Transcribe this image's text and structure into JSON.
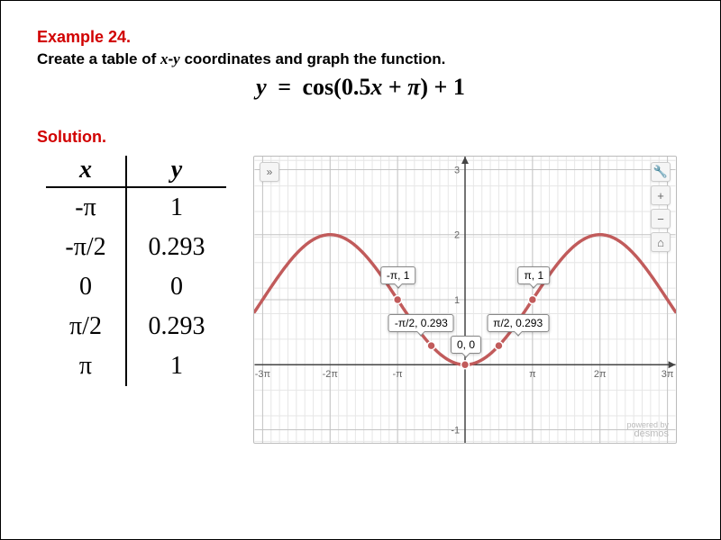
{
  "example": {
    "title": "Example 24."
  },
  "instruction": "Create a table of x-y coordinates and graph the function.",
  "equation": {
    "lhs": "y",
    "eq": "=",
    "rhs": "cos(0.5x + π) + 1"
  },
  "solution": {
    "title": "Solution."
  },
  "table": {
    "headers": {
      "x": "x",
      "y": "y"
    },
    "rows": [
      {
        "x": "-π",
        "y": "1"
      },
      {
        "x": "-π/2",
        "y": "0.293"
      },
      {
        "x": "0",
        "y": "0"
      },
      {
        "x": "π/2",
        "y": "0.293"
      },
      {
        "x": "π",
        "y": "1"
      }
    ]
  },
  "graph": {
    "type": "line",
    "xlim": [
      -9.8,
      9.8
    ],
    "ylim": [
      -1.2,
      3.2
    ],
    "xtick_step_pi": 1,
    "ytick_step": 1,
    "xtick_labels": [
      "-3π",
      "-2π",
      "-π",
      "π",
      "2π",
      "3π"
    ],
    "xtick_vals": [
      -9.4248,
      -6.2832,
      -3.1416,
      3.1416,
      6.2832,
      9.4248
    ],
    "ytick_labels": [
      "-1",
      "1",
      "2",
      "3"
    ],
    "ytick_vals": [
      -1,
      1,
      2,
      3
    ],
    "grid_minor_step": 0.3927,
    "background_color": "#ffffff",
    "grid_minor_color": "#e6e6e6",
    "grid_major_color": "#c4c4c4",
    "axis_color": "#444444",
    "axis_label_color": "#666666",
    "axis_label_fontsize": 11,
    "curve_color": "#c15b5b",
    "curve_stroke": 3.5,
    "point_color": "#c15b5b",
    "point_border": "#ffffff",
    "point_radius": 4.5,
    "labeled_points": [
      {
        "x": -3.1416,
        "y": 1,
        "label": "-π, 1",
        "offset": [
          0,
          -18
        ]
      },
      {
        "x": 3.1416,
        "y": 1,
        "label": "π, 1",
        "offset": [
          0,
          -18
        ]
      },
      {
        "x": -1.5708,
        "y": 0.293,
        "label": "-π/2, 0.293",
        "offset": [
          -12,
          -16
        ]
      },
      {
        "x": 1.5708,
        "y": 0.293,
        "label": "π/2, 0.293",
        "offset": [
          20,
          -16
        ]
      },
      {
        "x": 0,
        "y": 0,
        "label": "0, 0",
        "offset": [
          0,
          -14
        ]
      }
    ],
    "buttons": {
      "collapse": "»",
      "wrench": "🔧",
      "plus": "+",
      "minus": "−",
      "home": "⌂"
    },
    "watermark": {
      "line1": "powered by",
      "line2": "desmos"
    }
  }
}
